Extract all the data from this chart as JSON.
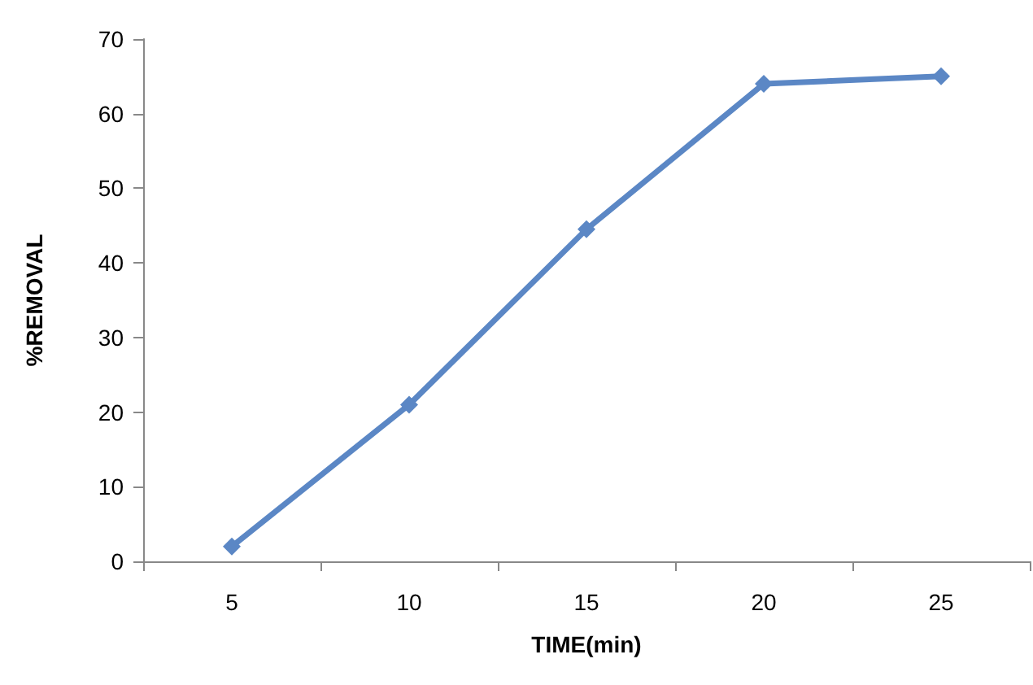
{
  "chart_data": {
    "type": "line",
    "xlabel": "TIME(min)",
    "ylabel": "%REMOVAL",
    "categories": [
      "5",
      "10",
      "15",
      "20",
      "25"
    ],
    "series": [
      {
        "color": "#5b87c5",
        "values": [
          2,
          21,
          44.5,
          64,
          65
        ]
      }
    ],
    "ylim": [
      0,
      70
    ],
    "yticks": [
      0,
      10,
      20,
      30,
      40,
      50,
      60,
      70
    ],
    "grid": false,
    "marker": "diamond",
    "line_style": "solid"
  }
}
